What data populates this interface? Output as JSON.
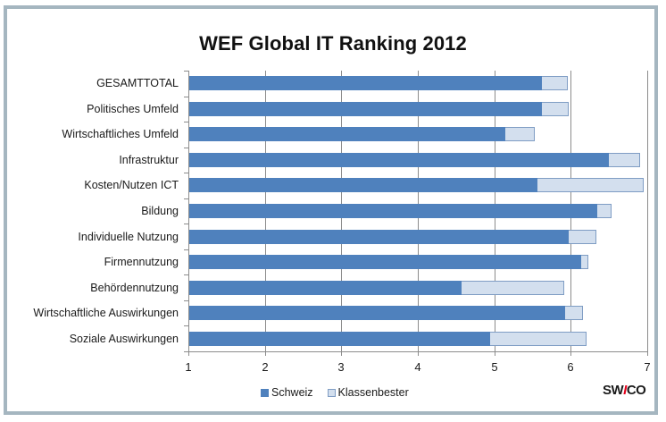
{
  "chart_data": {
    "type": "bar",
    "orientation": "horizontal",
    "stacked": "overlay",
    "title": "WEF Global IT Ranking 2012",
    "xlabel": "",
    "ylabel": "",
    "xlim": [
      1,
      7
    ],
    "x_ticks": [
      "1",
      "2",
      "3",
      "4",
      "5",
      "6",
      "7"
    ],
    "grid": true,
    "legend_position": "bottom",
    "categories": [
      "GESAMTTOTAL",
      "Politisches Umfeld",
      "Wirtschaftliches Umfeld",
      "Infrastruktur",
      "Kosten/Nutzen ICT",
      "Bildung",
      "Individuelle Nutzung",
      "Firmennutzung",
      "Behördennutzung",
      "Wirtschaftliche Auswirkungen",
      "Soziale Auswirkungen"
    ],
    "series": [
      {
        "name": "Schweiz",
        "color": "#4f81bd",
        "values": [
          5.62,
          5.62,
          5.14,
          6.5,
          5.57,
          6.35,
          5.97,
          6.14,
          4.57,
          5.93,
          4.94
        ]
      },
      {
        "name": "Klassenbester",
        "color": "#d3dfee",
        "values": [
          5.96,
          5.97,
          5.53,
          6.91,
          6.95,
          6.53,
          6.34,
          6.23,
          5.91,
          6.16,
          6.21
        ]
      }
    ]
  },
  "logo": {
    "text_before": "SW",
    "text_accent": "I",
    "text_after": "CO"
  },
  "colors": {
    "frame": "#a5b6c0",
    "schweiz": "#4f81bd",
    "klassenbester": "#d3dfee",
    "grid": "#8c8c8c",
    "logo_accent": "#e3001b"
  }
}
